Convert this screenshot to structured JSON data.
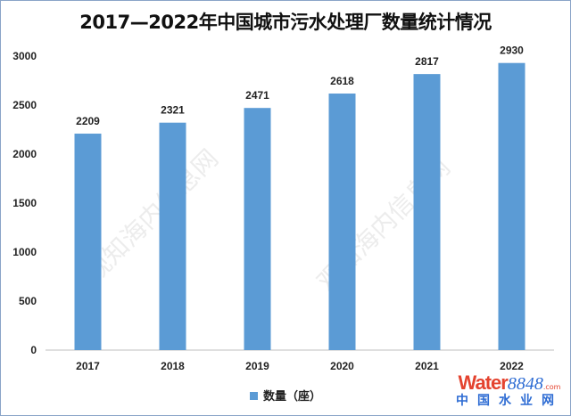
{
  "chart_data": {
    "type": "bar",
    "title": "2017—2022年中国城市污水处理厂数量统计情况",
    "categories": [
      "2017",
      "2018",
      "2019",
      "2020",
      "2021",
      "2022"
    ],
    "series": [
      {
        "name": "数量（座）",
        "values": [
          2209,
          2321,
          2471,
          2618,
          2817,
          2930
        ],
        "color": "#5b9bd5"
      }
    ],
    "xlabel": "",
    "ylabel": "",
    "ylim": [
      0,
      3000
    ],
    "yticks": [
      0,
      500,
      1000,
      1500,
      2000,
      2500,
      3000
    ],
    "grid": false,
    "legend": "bottom-center"
  },
  "watermark": "观知海内信息网",
  "logo": {
    "brand": "Water",
    "number": "8848",
    "suffix": ".com",
    "cn": "中国水业网"
  }
}
